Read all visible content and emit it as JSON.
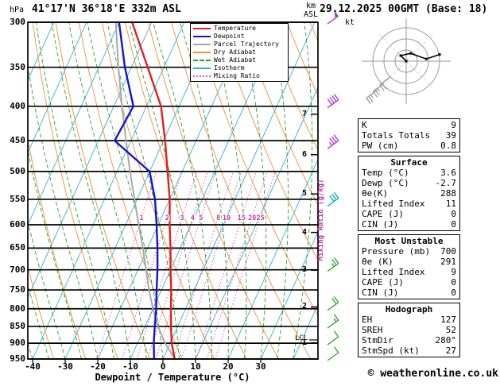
{
  "header": {
    "pressure_unit_label": "hPa",
    "station_title": "41°17'N 36°18'E 332m ASL",
    "datetime_title": "29.12.2025 00GMT (Base: 18)",
    "altitude_unit_line1": "km",
    "altitude_unit_line2": "ASL"
  },
  "legend": {
    "items": [
      {
        "label": "Temperature",
        "color": "#e02020",
        "style": "solid"
      },
      {
        "label": "Dewpoint",
        "color": "#1414cc",
        "style": "solid"
      },
      {
        "label": "Parcel Trajectory",
        "color": "#a8a8a8",
        "style": "solid"
      },
      {
        "label": "Dry Adiabat",
        "color": "#ef8e38",
        "style": "solid"
      },
      {
        "label": "Wet Adiabat",
        "color": "#2aa02a",
        "style": "dashed"
      },
      {
        "label": "Isotherm",
        "color": "#2fb4c8",
        "style": "solid"
      },
      {
        "label": "Mixing Ratio",
        "color": "#d857b8",
        "style": "dotted"
      }
    ]
  },
  "axes": {
    "pressure_ticks": [
      300,
      350,
      400,
      450,
      500,
      550,
      600,
      650,
      700,
      750,
      800,
      850,
      900,
      950
    ],
    "temperature_ticks": [
      -40,
      -30,
      -20,
      -10,
      0,
      10,
      20,
      30
    ],
    "x_axis_label": "Dewpoint / Temperature (°C)",
    "km_ticks": [
      {
        "km": 7,
        "p": 411
      },
      {
        "km": 6,
        "p": 472
      },
      {
        "km": 5,
        "p": 540
      },
      {
        "km": 4,
        "p": 616
      },
      {
        "km": 3,
        "p": 701
      },
      {
        "km": 2,
        "p": 795
      },
      {
        "km": 1,
        "p": 899
      }
    ],
    "lcl": {
      "label": "LCL",
      "p": 890
    },
    "mixing_ratio_axis_label": "Mixing Ratio (g/kg)",
    "mixing_ratio_values": [
      1,
      2,
      3,
      4,
      5,
      8,
      10,
      15,
      20,
      25
    ]
  },
  "chart_data": {
    "type": "line",
    "subtype": "skew-t_log-p_sounding",
    "title": "41°17'N 36°18'E 332m ASL",
    "xlabel": "Dewpoint / Temperature (°C)",
    "ylabel": "hPa",
    "x_range_C": [
      -40,
      35
    ],
    "pressure_range_hPa": [
      300,
      950
    ],
    "grid": "skew-t background: isotherms, dry/wet adiabats, mixing-ratio lines",
    "legend_position": "top-right-inside",
    "pressure_hPa": [
      950,
      900,
      850,
      800,
      750,
      700,
      650,
      600,
      550,
      500,
      450,
      400,
      350,
      300
    ],
    "series": [
      {
        "name": "Temperature",
        "unit": "°C",
        "values": [
          3.6,
          0.5,
          -2,
          -4.5,
          -7,
          -10,
          -13,
          -16.5,
          -20,
          -24.5,
          -29.5,
          -35.5,
          -45,
          -56
        ]
      },
      {
        "name": "Dewpoint",
        "unit": "°C",
        "values": [
          -2.7,
          -5,
          -7,
          -9,
          -11.5,
          -14,
          -17,
          -20.5,
          -24.5,
          -30,
          -45,
          -44,
          -52,
          -60
        ]
      },
      {
        "name": "Parcel Trajectory",
        "unit": "°C",
        "values": [
          3.6,
          -1.5,
          -6,
          -10,
          -13.8,
          -17.5,
          -21.5,
          -26,
          -30.8,
          -36,
          -41.5,
          -47.5,
          -54,
          -61
        ]
      }
    ],
    "wind_barbs": [
      {
        "pressure": 300,
        "speed_kt": 50,
        "color": "violet"
      },
      {
        "pressure": 400,
        "speed_kt": 40,
        "color": "violet"
      },
      {
        "pressure": 460,
        "speed_kt": 35,
        "color": "violet"
      },
      {
        "pressure": 560,
        "speed_kt": 30,
        "color": "teal"
      },
      {
        "pressure": 700,
        "speed_kt": 25,
        "color": "green"
      },
      {
        "pressure": 800,
        "speed_kt": 20,
        "color": "green"
      },
      {
        "pressure": 850,
        "speed_kt": 15,
        "color": "green"
      },
      {
        "pressure": 900,
        "speed_kt": 10,
        "color": "green"
      },
      {
        "pressure": 950,
        "speed_kt": 10,
        "color": "green"
      }
    ]
  },
  "hodograph": {
    "unit": "kt",
    "rings_kt": [
      10,
      20,
      30
    ],
    "trace_kt": [
      [
        0,
        0
      ],
      [
        -5,
        5
      ],
      [
        4,
        7
      ],
      [
        18,
        2
      ],
      [
        30,
        6
      ]
    ],
    "level_marks_kt": [
      [
        -14,
        -14,
        20
      ],
      [
        -20,
        -20,
        25
      ],
      [
        -26,
        -26,
        25
      ]
    ]
  },
  "panels": [
    {
      "title": "",
      "rows": [
        [
          "K",
          "9"
        ],
        [
          "Totals Totals",
          "39"
        ],
        [
          "PW (cm)",
          "0.8"
        ]
      ]
    },
    {
      "title": "Surface",
      "rows": [
        [
          "Temp (°C)",
          "3.6"
        ],
        [
          "Dewp (°C)",
          "-2.7"
        ],
        [
          "θe(K)",
          "288"
        ],
        [
          "Lifted Index",
          "11"
        ],
        [
          "CAPE (J)",
          "0"
        ],
        [
          "CIN (J)",
          "0"
        ]
      ]
    },
    {
      "title": "Most Unstable",
      "rows": [
        [
          "Pressure (mb)",
          "700"
        ],
        [
          "θe (K)",
          "291"
        ],
        [
          "Lifted Index",
          "9"
        ],
        [
          "CAPE (J)",
          "0"
        ],
        [
          "CIN (J)",
          "0"
        ]
      ]
    },
    {
      "title": "Hodograph",
      "rows": [
        [
          "EH",
          "127"
        ],
        [
          "SREH",
          "52"
        ],
        [
          "StmDir",
          "280°"
        ],
        [
          "StmSpd (kt)",
          "27"
        ]
      ]
    }
  ],
  "footer": {
    "copyright": "© weatheronline.co.uk"
  },
  "colors": {
    "frame": "#000000",
    "temperature": "#e02020",
    "dewpoint": "#1414cc",
    "parcel": "#a8a8a8",
    "dry_adiabat": "#ef8e38",
    "wet_adiabat": "#2aa02a",
    "isotherm": "#2fb4c8",
    "mixing_ratio": "#d857b8",
    "mixing_ratio_label": "#c837a8",
    "barb_green": "#28a828",
    "barb_teal": "#00a8b0",
    "barb_violet": "#b030d0",
    "hodo_grid": "#999999"
  }
}
